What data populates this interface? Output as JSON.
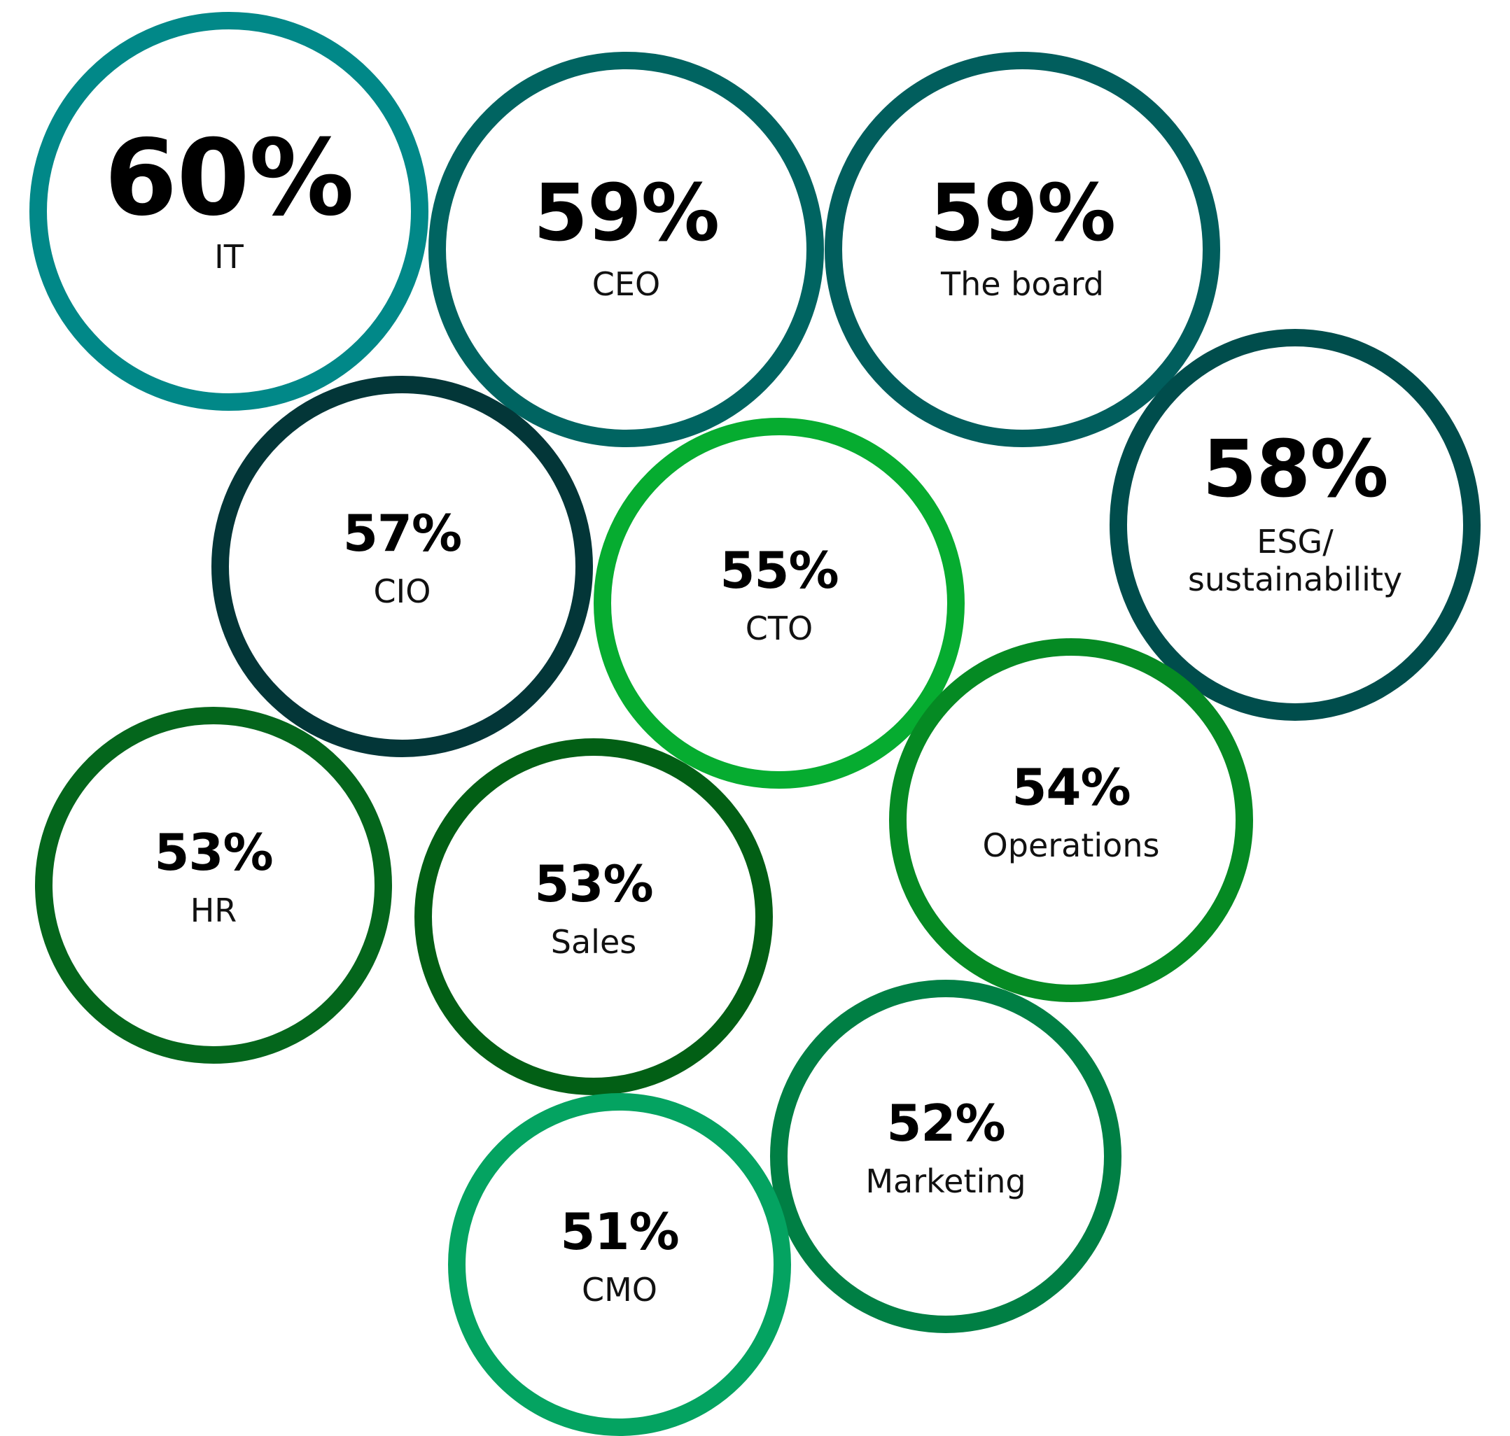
{
  "chart_data": {
    "type": "bubble",
    "title": "",
    "items": [
      {
        "label": "IT",
        "value": 60,
        "value_text": "60%",
        "color": "#018888"
      },
      {
        "label": "CEO",
        "value": 59,
        "value_text": "59%",
        "color": "#006461"
      },
      {
        "label": "The board",
        "value": 59,
        "value_text": "59%",
        "color": "#015E5D"
      },
      {
        "label": "ESG/\nsustainability",
        "value": 58,
        "value_text": "58%",
        "color": "#004D4C"
      },
      {
        "label": "CIO",
        "value": 57,
        "value_text": "57%",
        "color": "#033638"
      },
      {
        "label": "CTO",
        "value": 55,
        "value_text": "55%",
        "color": "#06AC30"
      },
      {
        "label": "Operations",
        "value": 54,
        "value_text": "54%",
        "color": "#058A23"
      },
      {
        "label": "HR",
        "value": 53,
        "value_text": "53%",
        "color": "#04661C"
      },
      {
        "label": "Sales",
        "value": 53,
        "value_text": "53%",
        "color": "#025F15"
      },
      {
        "label": "Marketing",
        "value": 52,
        "value_text": "52%",
        "color": "#007F44"
      },
      {
        "label": "CMO",
        "value": 51,
        "value_text": "51%",
        "color": "#04A361"
      }
    ]
  }
}
